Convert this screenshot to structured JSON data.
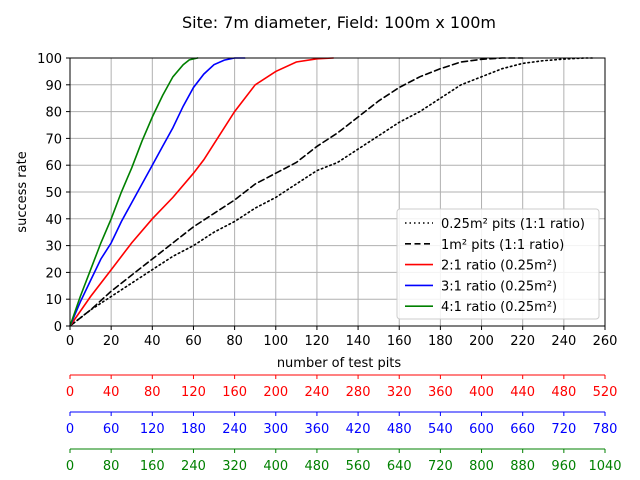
{
  "chart_data": {
    "type": "line",
    "title": "Site: 7m diameter, Field: 100m x 100m",
    "xlabel": "number of test pits",
    "ylabel": "success rate",
    "xlim": [
      0,
      260
    ],
    "ylim": [
      0,
      100
    ],
    "x_ticks": [
      0,
      20,
      40,
      60,
      80,
      100,
      120,
      140,
      160,
      180,
      200,
      220,
      240,
      260
    ],
    "y_ticks": [
      0,
      10,
      20,
      30,
      40,
      50,
      60,
      70,
      80,
      90,
      100
    ],
    "grid": true,
    "legend_position": "lower right",
    "series": [
      {
        "name": "0.25m² pits (1:1 ratio)",
        "color": "#000000",
        "style": "dotted",
        "x": [
          0,
          10,
          20,
          30,
          40,
          50,
          60,
          70,
          80,
          90,
          100,
          110,
          120,
          130,
          140,
          150,
          160,
          170,
          180,
          190,
          200,
          210,
          220,
          230,
          240,
          250,
          255
        ],
        "y": [
          0,
          6,
          11,
          16,
          21,
          26,
          30,
          35,
          39,
          44,
          48,
          53,
          58,
          61,
          66,
          71,
          76,
          80,
          85,
          90,
          93,
          96,
          98,
          99,
          99.6,
          100,
          100
        ]
      },
      {
        "name": "1m² pits (1:1 ratio)",
        "color": "#000000",
        "style": "dashed",
        "x": [
          0,
          10,
          20,
          30,
          40,
          50,
          60,
          70,
          80,
          90,
          100,
          110,
          120,
          130,
          140,
          150,
          160,
          170,
          180,
          190,
          200,
          210,
          220
        ],
        "y": [
          0,
          6,
          13,
          19,
          25,
          31,
          37,
          42,
          47,
          53,
          57,
          61,
          67,
          72,
          78,
          84,
          89,
          93,
          96,
          98.5,
          99.5,
          100,
          100
        ]
      },
      {
        "name": "2:1 ratio (0.25m²)",
        "color": "#ff0000",
        "style": "solid",
        "x": [
          0,
          10,
          20,
          30,
          40,
          50,
          60,
          65,
          70,
          80,
          90,
          100,
          110,
          120,
          128
        ],
        "y": [
          0,
          11,
          21,
          31,
          40,
          48,
          57,
          62,
          68,
          80,
          90,
          95,
          98.5,
          99.7,
          100
        ]
      },
      {
        "name": "3:1 ratio (0.25m²)",
        "color": "#0000ff",
        "style": "solid",
        "x": [
          0,
          5,
          10,
          15,
          20,
          25,
          30,
          35,
          40,
          45,
          50,
          55,
          60,
          65,
          70,
          75,
          80,
          85
        ],
        "y": [
          0,
          9,
          17,
          25,
          31,
          39,
          46,
          53,
          60,
          67,
          74,
          82,
          89,
          94,
          97.5,
          99.2,
          100,
          100
        ]
      },
      {
        "name": "4:1 ratio (0.25m²)",
        "color": "#008000",
        "style": "solid",
        "x": [
          0,
          5,
          10,
          15,
          20,
          25,
          30,
          35,
          40,
          45,
          50,
          55,
          58,
          62
        ],
        "y": [
          0,
          11,
          21,
          31,
          40,
          50,
          59,
          69,
          78,
          86,
          93,
          97.5,
          99.3,
          100
        ]
      }
    ],
    "secondary_axes": [
      {
        "color": "#ff0000",
        "ticks": [
          0,
          40,
          80,
          120,
          160,
          200,
          240,
          280,
          320,
          360,
          400,
          440,
          480,
          520
        ]
      },
      {
        "color": "#0000ff",
        "ticks": [
          0,
          60,
          120,
          180,
          240,
          300,
          360,
          420,
          480,
          540,
          600,
          660,
          720,
          780
        ]
      },
      {
        "color": "#008000",
        "ticks": [
          0,
          80,
          160,
          240,
          320,
          400,
          480,
          560,
          640,
          720,
          800,
          880,
          960,
          1040
        ]
      }
    ]
  }
}
